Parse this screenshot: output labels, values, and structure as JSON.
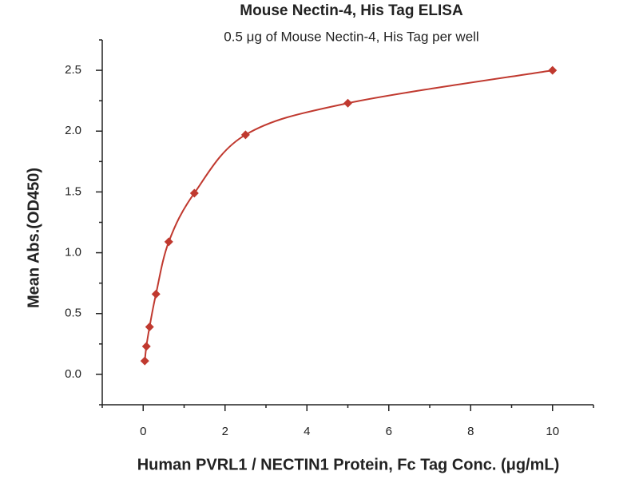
{
  "chart_data": {
    "type": "line",
    "title": "Mouse Nectin-4, His Tag ELISA",
    "subtitle": "0.5 μg of Mouse Nectin-4, His Tag per well",
    "xlabel": "Human PVRL1 / NECTIN1 Protein, Fc Tag Conc. (μg/mL)",
    "ylabel": "Mean Abs.(OD450)",
    "x": [
      0.039,
      0.078,
      0.156,
      0.3125,
      0.625,
      1.25,
      2.5,
      5,
      10
    ],
    "series": [
      {
        "color": "#c0392f",
        "values": [
          0.11,
          0.23,
          0.39,
          0.66,
          1.09,
          1.49,
          1.97,
          2.23,
          2.5
        ]
      }
    ],
    "xlim": [
      -1,
      11
    ],
    "xticks": [
      0,
      2,
      4,
      6,
      8,
      10
    ],
    "xminor_ticks": [
      -1,
      1,
      3,
      5,
      7,
      9,
      11
    ],
    "ylim": [
      -0.25,
      2.75
    ],
    "yticks": [
      {
        "value": 0,
        "label": "0.0"
      },
      0.5,
      {
        "value": 1,
        "label": "1.0"
      },
      1.5,
      {
        "value": 2,
        "label": "2.0"
      },
      2.5
    ],
    "yminor_ticks": [
      -0.25,
      0.25,
      0.75,
      1.25,
      1.75,
      2.25,
      2.75
    ],
    "grid": false
  }
}
